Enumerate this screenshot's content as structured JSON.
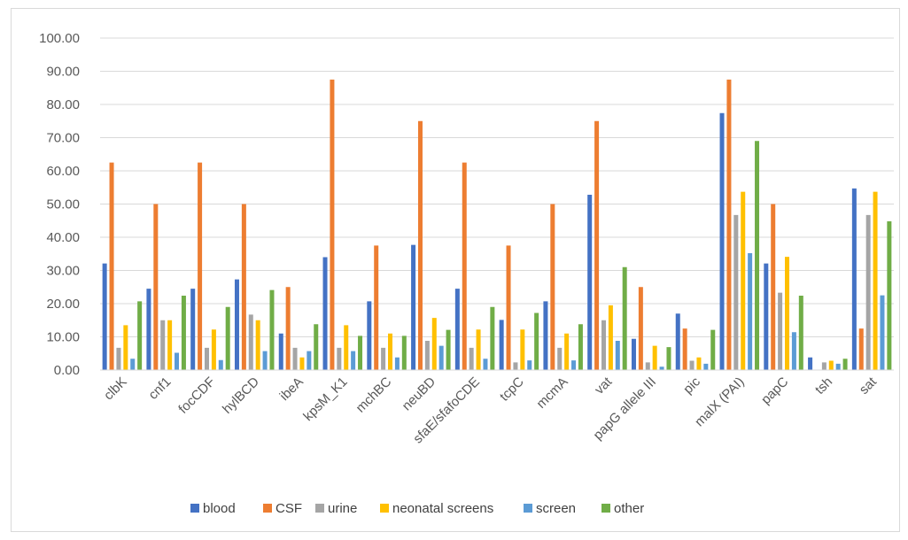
{
  "chart_data": {
    "type": "bar",
    "categories": [
      "clbK",
      "cnf1",
      "focCDF",
      "hylBCD",
      "ibeA",
      "kpsM_K1",
      "mchBC",
      "neuBD",
      "sfaE/sfafoCDE",
      "tcpC",
      "mcmA",
      "vat",
      "papG allele III",
      "pic",
      "malX (PAI)",
      "papC",
      "tsh",
      "sat"
    ],
    "series": [
      {
        "name": "blood",
        "color": "#4472c4",
        "values": [
          32.1,
          24.5,
          24.5,
          27.3,
          11.0,
          34.0,
          20.7,
          37.7,
          24.5,
          15.1,
          20.7,
          52.8,
          9.4,
          17.0,
          77.4,
          32.1,
          3.8,
          54.7
        ]
      },
      {
        "name": "CSF",
        "color": "#ed7d31",
        "values": [
          62.5,
          50.0,
          62.5,
          50.0,
          25.0,
          87.5,
          37.5,
          75.0,
          62.5,
          37.5,
          50.0,
          75.0,
          25.0,
          12.5,
          87.5,
          50.0,
          0.0,
          12.5
        ]
      },
      {
        "name": "urine",
        "color": "#a5a5a5",
        "values": [
          6.7,
          15.0,
          6.7,
          16.7,
          6.7,
          6.7,
          6.7,
          8.8,
          6.7,
          2.3,
          6.7,
          15.0,
          2.3,
          2.8,
          46.7,
          23.3,
          2.3,
          46.7
        ]
      },
      {
        "name": "neonatal screens",
        "color": "#ffc000",
        "values": [
          13.5,
          15.0,
          12.2,
          15.0,
          3.8,
          13.5,
          11.0,
          15.7,
          12.2,
          12.2,
          11.0,
          19.5,
          7.3,
          3.8,
          53.7,
          34.1,
          2.8,
          53.7
        ]
      },
      {
        "name": "screen",
        "color": "#5b9bd5",
        "values": [
          3.4,
          5.2,
          3.0,
          5.7,
          5.7,
          5.7,
          3.8,
          7.3,
          3.4,
          2.9,
          2.9,
          8.8,
          1.0,
          1.9,
          35.2,
          11.4,
          1.9,
          22.5
        ]
      },
      {
        "name": "other",
        "color": "#70ad47",
        "values": [
          20.7,
          22.4,
          19.0,
          24.1,
          13.8,
          10.3,
          10.3,
          12.1,
          19.0,
          17.2,
          13.8,
          31.0,
          6.9,
          12.1,
          69.0,
          22.4,
          3.4,
          44.8
        ]
      }
    ],
    "ylim": [
      0,
      100
    ],
    "yticks": [
      "0.00",
      "10.00",
      "20.00",
      "30.00",
      "40.00",
      "50.00",
      "60.00",
      "70.00",
      "80.00",
      "90.00",
      "100.00"
    ],
    "grid": true,
    "legend_position": "bottom"
  }
}
